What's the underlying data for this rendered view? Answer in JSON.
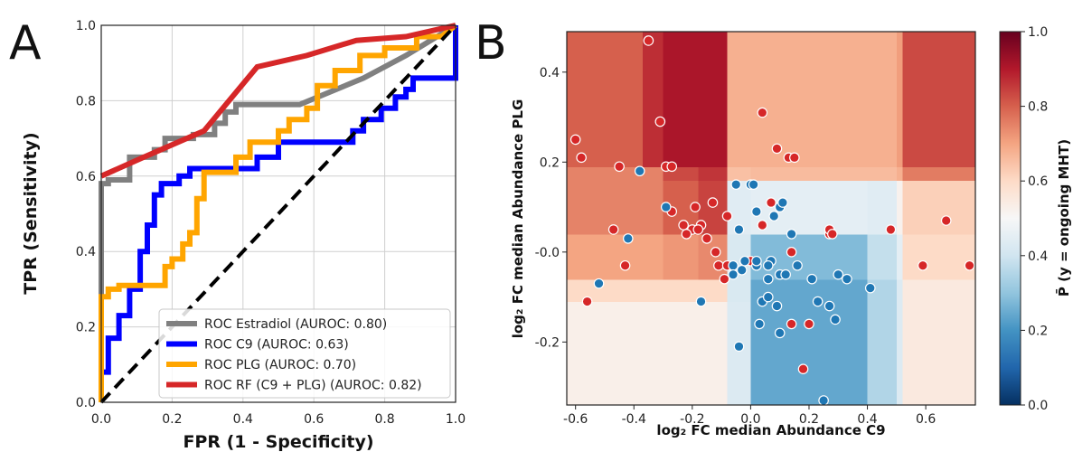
{
  "panel_a_label": "A",
  "panel_b_label": "B",
  "chart_data": [
    {
      "type": "line",
      "xlabel": "FPR (1 - Specificity)",
      "ylabel": "TPR (Sensitivity)",
      "xlim": [
        0,
        1
      ],
      "ylim": [
        0,
        1
      ],
      "xticks": [
        "0.0",
        "0.2",
        "0.4",
        "0.6",
        "0.8",
        "1.0"
      ],
      "yticks": [
        "0.0",
        "0.2",
        "0.4",
        "0.6",
        "0.8",
        "1.0"
      ],
      "grid": true,
      "legend_placement": "lower-right",
      "diagonal": {
        "x": [
          0,
          1
        ],
        "y": [
          0,
          1
        ],
        "color": "#000000",
        "style": "dashed"
      },
      "series": [
        {
          "name": "ROC Estradiol (AUROC: 0.80)",
          "color": "#808080",
          "x": [
            0,
            0,
            0.02,
            0.02,
            0.08,
            0.08,
            0.15,
            0.15,
            0.18,
            0.18,
            0.26,
            0.26,
            0.32,
            0.32,
            0.35,
            0.35,
            0.38,
            0.38,
            0.56,
            0.74,
            0.86,
            1.0
          ],
          "y": [
            0,
            0.58,
            0.58,
            0.59,
            0.59,
            0.65,
            0.65,
            0.67,
            0.67,
            0.7,
            0.7,
            0.71,
            0.71,
            0.74,
            0.74,
            0.77,
            0.77,
            0.79,
            0.79,
            0.86,
            0.92,
            1.0
          ]
        },
        {
          "name": "ROC C9 (AUROC: 0.63)",
          "color": "#0000ff",
          "x": [
            0,
            0.02,
            0.02,
            0.05,
            0.05,
            0.08,
            0.08,
            0.11,
            0.11,
            0.13,
            0.13,
            0.15,
            0.15,
            0.17,
            0.17,
            0.22,
            0.22,
            0.25,
            0.25,
            0.44,
            0.44,
            0.5,
            0.5,
            0.71,
            0.71,
            0.74,
            0.74,
            0.79,
            0.79,
            0.83,
            0.83,
            0.86,
            0.86,
            0.88,
            0.88,
            0.93,
            0.93,
            1.0,
            1.0
          ],
          "y": [
            0.08,
            0.08,
            0.17,
            0.17,
            0.23,
            0.23,
            0.3,
            0.3,
            0.4,
            0.4,
            0.47,
            0.47,
            0.55,
            0.55,
            0.58,
            0.58,
            0.6,
            0.6,
            0.62,
            0.62,
            0.65,
            0.65,
            0.69,
            0.69,
            0.72,
            0.72,
            0.75,
            0.75,
            0.78,
            0.78,
            0.81,
            0.81,
            0.83,
            0.83,
            0.86,
            0.86,
            0.86,
            0.86,
            1.0
          ]
        },
        {
          "name": "ROC PLG (AUROC: 0.70)",
          "color": "#ffa500",
          "x": [
            0,
            0,
            0.02,
            0.02,
            0.05,
            0.05,
            0.18,
            0.18,
            0.2,
            0.2,
            0.23,
            0.23,
            0.25,
            0.25,
            0.27,
            0.27,
            0.29,
            0.29,
            0.38,
            0.38,
            0.42,
            0.42,
            0.5,
            0.5,
            0.53,
            0.53,
            0.58,
            0.58,
            0.61,
            0.61,
            0.66,
            0.66,
            0.73,
            0.73,
            0.8,
            0.8,
            0.89,
            0.89,
            0.96,
            1.0
          ],
          "y": [
            0,
            0.28,
            0.28,
            0.3,
            0.3,
            0.31,
            0.31,
            0.36,
            0.36,
            0.38,
            0.38,
            0.42,
            0.42,
            0.45,
            0.45,
            0.54,
            0.54,
            0.61,
            0.61,
            0.65,
            0.65,
            0.69,
            0.69,
            0.72,
            0.72,
            0.75,
            0.75,
            0.78,
            0.78,
            0.84,
            0.84,
            0.88,
            0.88,
            0.92,
            0.92,
            0.94,
            0.94,
            0.97,
            0.97,
            1.0
          ]
        },
        {
          "name": "ROC RF (C9 + PLG) (AUROC: 0.82)",
          "color": "#d62728",
          "x": [
            0,
            0.12,
            0.29,
            0.44,
            0.58,
            0.72,
            0.86,
            1.0
          ],
          "y": [
            0.6,
            0.65,
            0.72,
            0.89,
            0.92,
            0.96,
            0.97,
            1.0
          ]
        }
      ]
    },
    {
      "type": "heatmap",
      "xlabel": "log₂ FC median Abundance C9",
      "ylabel": "log₂ FC median Abundance PLG",
      "xlim": [
        -0.63,
        0.77
      ],
      "ylim": [
        -0.34,
        0.49
      ],
      "xticks": [
        "-0.6",
        "-0.4",
        "-0.2",
        "0.0",
        "0.2",
        "0.4",
        "0.6"
      ],
      "yticks": [
        "0.4",
        "0.2",
        "-0.0",
        "-0.2"
      ],
      "colorbar": {
        "label": "P̄ (y = ongoing MHT)",
        "range": [
          0.0,
          1.0
        ],
        "ticks": [
          "0.0",
          "0.2",
          "0.4",
          "0.6",
          "0.8",
          "1.0"
        ],
        "colormap": "RdBu_r"
      },
      "x_edges": [
        -0.63,
        -0.37,
        -0.3,
        -0.18,
        -0.08,
        0.0,
        0.4,
        0.5,
        0.52,
        0.77
      ],
      "y_edges": [
        -0.34,
        -0.11,
        -0.06,
        0.04,
        0.16,
        0.19,
        0.49
      ],
      "cells": [
        [
          0.53,
          0.53,
          0.53,
          0.53,
          0.43,
          0.24,
          0.35,
          0.43,
          0.55
        ],
        [
          0.6,
          0.6,
          0.6,
          0.6,
          0.42,
          0.24,
          0.35,
          0.43,
          0.55
        ],
        [
          0.7,
          0.7,
          0.72,
          0.74,
          0.42,
          0.28,
          0.38,
          0.45,
          0.6
        ],
        [
          0.75,
          0.75,
          0.8,
          0.84,
          0.44,
          0.45,
          0.44,
          0.52,
          0.62
        ],
        [
          0.75,
          0.75,
          0.83,
          0.86,
          0.65,
          0.66,
          0.66,
          0.68,
          0.76
        ],
        [
          0.8,
          0.87,
          0.91,
          0.91,
          0.68,
          0.68,
          0.68,
          0.71,
          0.83
        ]
      ],
      "points_class_ongoing": {
        "color": "#d62728",
        "x": [
          -0.35,
          -0.31,
          -0.29,
          -0.27,
          -0.19,
          -0.17,
          -0.13,
          -0.08,
          0.04,
          0.07,
          0.13,
          0.15,
          0.18,
          0.2,
          0.27,
          0.27,
          -0.6,
          -0.58,
          -0.45,
          -0.47,
          -0.56,
          -0.43,
          -0.27,
          -0.23,
          -0.2,
          -0.22,
          -0.18,
          -0.15,
          -0.12,
          -0.11,
          -0.09,
          -0.08,
          0.0,
          0.04,
          0.09,
          0.14,
          0.14,
          0.28,
          0.48,
          0.59,
          0.67,
          0.75
        ],
        "y": [
          0.47,
          0.29,
          0.19,
          0.19,
          0.1,
          0.06,
          0.11,
          0.08,
          0.31,
          0.11,
          0.21,
          0.21,
          -0.26,
          -0.16,
          0.04,
          0.05,
          0.25,
          0.21,
          0.19,
          0.05,
          -0.11,
          -0.03,
          0.09,
          0.06,
          0.05,
          0.04,
          0.05,
          0.03,
          0.0,
          -0.03,
          -0.06,
          -0.03,
          -0.02,
          0.06,
          0.23,
          0.0,
          -0.16,
          0.04,
          0.05,
          -0.03,
          0.07,
          -0.03
        ]
      },
      "points_class_other": {
        "color": "#1f77b4",
        "x": [
          -0.38,
          -0.29,
          -0.52,
          -0.42,
          -0.17,
          -0.05,
          0.0,
          0.01,
          -0.04,
          0.02,
          0.02,
          0.08,
          0.1,
          0.11,
          0.1,
          0.12,
          0.07,
          0.06,
          0.06,
          -0.06,
          -0.06,
          -0.03,
          -0.02,
          0.02,
          0.04,
          0.16,
          0.14,
          0.21,
          0.23,
          0.27,
          0.29,
          0.33,
          0.3,
          0.41,
          0.1,
          0.09,
          0.03,
          0.06,
          -0.04,
          0.25
        ],
        "y": [
          0.18,
          0.1,
          -0.07,
          0.03,
          -0.11,
          0.15,
          0.15,
          0.15,
          0.05,
          0.09,
          -0.03,
          0.08,
          0.1,
          0.11,
          -0.05,
          -0.05,
          -0.02,
          -0.03,
          -0.06,
          -0.03,
          -0.05,
          -0.04,
          -0.02,
          -0.02,
          -0.11,
          -0.03,
          0.04,
          -0.06,
          -0.11,
          -0.12,
          -0.15,
          -0.06,
          -0.05,
          -0.08,
          -0.18,
          -0.12,
          -0.16,
          -0.1,
          -0.21,
          -0.33
        ]
      }
    }
  ]
}
